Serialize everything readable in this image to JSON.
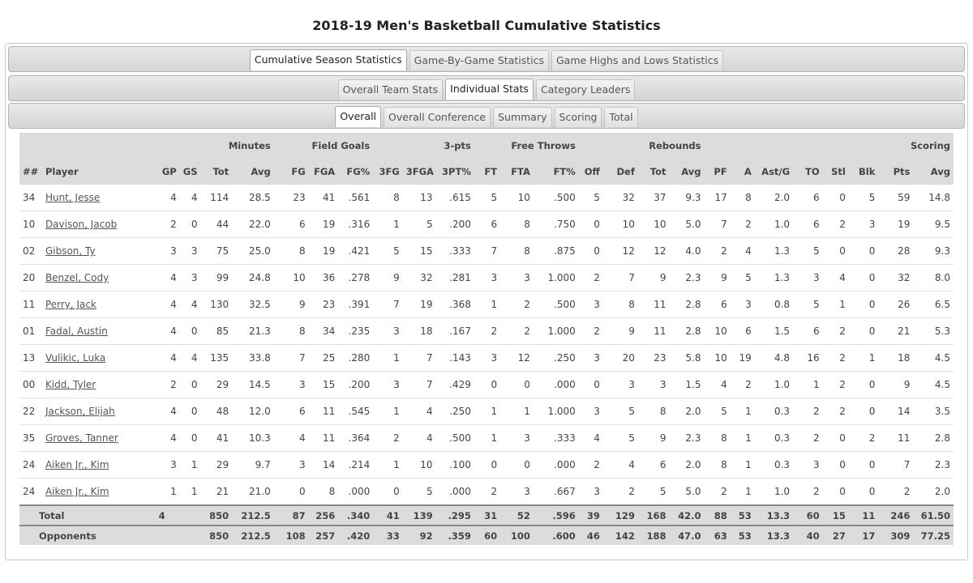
{
  "page_title": "2018-19 Men's Basketball Cumulative Statistics",
  "tabs_level1": [
    "Cumulative Season Statistics",
    "Game-By-Game Statistics",
    "Game Highs and Lows Statistics"
  ],
  "tabs_level1_active": 0,
  "tabs_level2": [
    "Overall Team Stats",
    "Individual Stats",
    "Category Leaders"
  ],
  "tabs_level2_active": 1,
  "tabs_level3": [
    "Overall",
    "Overall Conference",
    "Summary",
    "Scoring",
    "Total"
  ],
  "tabs_level3_active": 0,
  "group_headers": {
    "minutes": "Minutes",
    "field_goals": "Field Goals",
    "three_pts": "3-pts",
    "free_throws": "Free Throws",
    "rebounds": "Rebounds",
    "scoring": "Scoring"
  },
  "columns": [
    "##",
    "Player",
    "GP",
    "GS",
    "Tot",
    "Avg",
    "FG",
    "FGA",
    "FG%",
    "3FG",
    "3FGA",
    "3PT%",
    "FT",
    "FTA",
    "FT%",
    "Off",
    "Def",
    "Tot",
    "Avg",
    "PF",
    "A",
    "Ast/G",
    "TO",
    "Stl",
    "Blk",
    "Pts",
    "Avg"
  ],
  "players": [
    [
      "34",
      "Hunt, Jesse",
      "4",
      "4",
      "114",
      "28.5",
      "23",
      "41",
      ".561",
      "8",
      "13",
      ".615",
      "5",
      "10",
      ".500",
      "5",
      "32",
      "37",
      "9.3",
      "17",
      "8",
      "2.0",
      "6",
      "0",
      "5",
      "59",
      "14.8"
    ],
    [
      "10",
      "Davison, Jacob",
      "2",
      "0",
      "44",
      "22.0",
      "6",
      "19",
      ".316",
      "1",
      "5",
      ".200",
      "6",
      "8",
      ".750",
      "0",
      "10",
      "10",
      "5.0",
      "7",
      "2",
      "1.0",
      "6",
      "2",
      "3",
      "19",
      "9.5"
    ],
    [
      "02",
      "Gibson, Ty",
      "3",
      "3",
      "75",
      "25.0",
      "8",
      "19",
      ".421",
      "5",
      "15",
      ".333",
      "7",
      "8",
      ".875",
      "0",
      "12",
      "12",
      "4.0",
      "2",
      "4",
      "1.3",
      "5",
      "0",
      "0",
      "28",
      "9.3"
    ],
    [
      "20",
      "Benzel, Cody",
      "4",
      "3",
      "99",
      "24.8",
      "10",
      "36",
      ".278",
      "9",
      "32",
      ".281",
      "3",
      "3",
      "1.000",
      "2",
      "7",
      "9",
      "2.3",
      "9",
      "5",
      "1.3",
      "3",
      "4",
      "0",
      "32",
      "8.0"
    ],
    [
      "11",
      "Perry, Jack",
      "4",
      "4",
      "130",
      "32.5",
      "9",
      "23",
      ".391",
      "7",
      "19",
      ".368",
      "1",
      "2",
      ".500",
      "3",
      "8",
      "11",
      "2.8",
      "6",
      "3",
      "0.8",
      "5",
      "1",
      "0",
      "26",
      "6.5"
    ],
    [
      "01",
      "Fadal, Austin",
      "4",
      "0",
      "85",
      "21.3",
      "8",
      "34",
      ".235",
      "3",
      "18",
      ".167",
      "2",
      "2",
      "1.000",
      "2",
      "9",
      "11",
      "2.8",
      "10",
      "6",
      "1.5",
      "6",
      "2",
      "0",
      "21",
      "5.3"
    ],
    [
      "13",
      "Vulikic, Luka",
      "4",
      "4",
      "135",
      "33.8",
      "7",
      "25",
      ".280",
      "1",
      "7",
      ".143",
      "3",
      "12",
      ".250",
      "3",
      "20",
      "23",
      "5.8",
      "10",
      "19",
      "4.8",
      "16",
      "2",
      "1",
      "18",
      "4.5"
    ],
    [
      "00",
      "Kidd, Tyler",
      "2",
      "0",
      "29",
      "14.5",
      "3",
      "15",
      ".200",
      "3",
      "7",
      ".429",
      "0",
      "0",
      ".000",
      "0",
      "3",
      "3",
      "1.5",
      "4",
      "2",
      "1.0",
      "1",
      "2",
      "0",
      "9",
      "4.5"
    ],
    [
      "22",
      "Jackson, Elijah",
      "4",
      "0",
      "48",
      "12.0",
      "6",
      "11",
      ".545",
      "1",
      "4",
      ".250",
      "1",
      "1",
      "1.000",
      "3",
      "5",
      "8",
      "2.0",
      "5",
      "1",
      "0.3",
      "2",
      "2",
      "0",
      "14",
      "3.5"
    ],
    [
      "35",
      "Groves, Tanner",
      "4",
      "0",
      "41",
      "10.3",
      "4",
      "11",
      ".364",
      "2",
      "4",
      ".500",
      "1",
      "3",
      ".333",
      "4",
      "5",
      "9",
      "2.3",
      "8",
      "1",
      "0.3",
      "2",
      "0",
      "2",
      "11",
      "2.8"
    ],
    [
      "24",
      "Aiken Jr., Kim",
      "3",
      "1",
      "29",
      "9.7",
      "3",
      "14",
      ".214",
      "1",
      "10",
      ".100",
      "0",
      "0",
      ".000",
      "2",
      "4",
      "6",
      "2.0",
      "8",
      "1",
      "0.3",
      "3",
      "0",
      "0",
      "7",
      "2.3"
    ],
    [
      "24",
      "Aiken Jr., Kim",
      "1",
      "1",
      "21",
      "21.0",
      "0",
      "8",
      ".000",
      "0",
      "5",
      ".000",
      "2",
      "3",
      ".667",
      "3",
      "2",
      "5",
      "5.0",
      "2",
      "1",
      "1.0",
      "2",
      "0",
      "0",
      "2",
      "2.0"
    ]
  ],
  "totals": {
    "label": "Total",
    "values": [
      "4",
      "",
      "850",
      "212.5",
      "87",
      "256",
      ".340",
      "41",
      "139",
      ".295",
      "31",
      "52",
      ".596",
      "39",
      "129",
      "168",
      "42.0",
      "88",
      "53",
      "13.3",
      "60",
      "15",
      "11",
      "246",
      "61.50"
    ]
  },
  "opponents": {
    "label": "Opponents",
    "values": [
      "",
      "",
      "850",
      "212.5",
      "108",
      "257",
      ".420",
      "33",
      "92",
      ".359",
      "60",
      "100",
      ".600",
      "46",
      "142",
      "188",
      "47.0",
      "63",
      "53",
      "13.3",
      "40",
      "27",
      "17",
      "309",
      "77.25"
    ]
  }
}
